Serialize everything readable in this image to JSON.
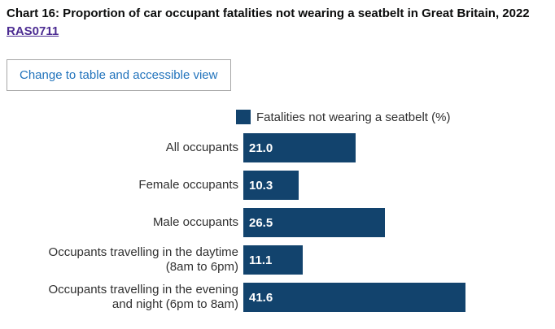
{
  "page": {
    "title": "Chart 16: Proportion of car occupant fatalities not wearing a seatbelt in Great Britain, 2022",
    "title_link": "RAS0711",
    "table_view_button": "Change to table and accessible view"
  },
  "colors": {
    "bar": "#12436D",
    "link": "#4c2c92",
    "button_text": "#2173bc",
    "title_text": "#0b0c0c",
    "label_text": "#303030",
    "bar_value_text": "#ffffff"
  },
  "chart_data": {
    "type": "bar",
    "orientation": "horizontal",
    "title": "Chart 16: Proportion of car occupant fatalities not wearing a seatbelt in Great Britain, 2022",
    "legend": "Fatalities not wearing a seatbelt (%)",
    "legend_position": "top",
    "categories": [
      "All occupants",
      "Female occupants",
      "Male occupants",
      "Occupants travelling in the daytime\n(8am to 6pm)",
      "Occupants travelling in the evening\nand night (6pm to 8am)"
    ],
    "values": [
      21.0,
      10.3,
      26.5,
      11.1,
      41.6
    ],
    "value_labels": [
      "21.0",
      "10.3",
      "26.5",
      "11.1",
      "41.6"
    ],
    "xlabel": "",
    "ylabel": "",
    "xlim": [
      0,
      45
    ],
    "grid": false,
    "axes_visible": false,
    "value_labels_position": "inside-start"
  }
}
